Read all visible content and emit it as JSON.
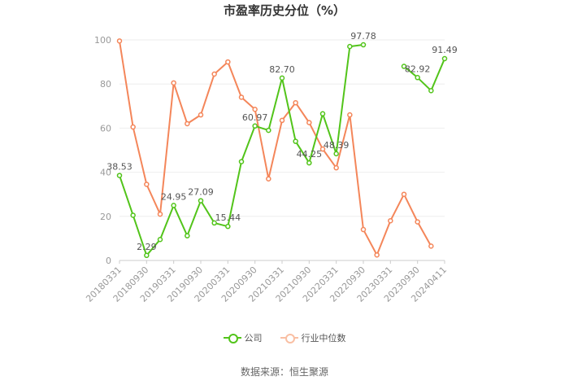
{
  "chart_data": {
    "type": "line",
    "title": "市盈率历史分位（%）",
    "ylim": [
      0,
      100
    ],
    "yticks": [
      0,
      20,
      40,
      60,
      80,
      100
    ],
    "grid": true,
    "legend_position": "bottom",
    "categories": [
      "20180331",
      "20180630",
      "20180930",
      "20181231",
      "20190331",
      "20190630",
      "20190930",
      "20191231",
      "20200331",
      "20200630",
      "20200930",
      "20201231",
      "20210331",
      "20210630",
      "20210930",
      "20211231",
      "20220331",
      "20220630",
      "20220930",
      "20221231",
      "20230331",
      "20230630",
      "20230930",
      "20231231",
      "20240411"
    ],
    "xtick_labels": [
      "20180331",
      "20180930",
      "20190331",
      "20190930",
      "20200331",
      "20200930",
      "20210331",
      "20210930",
      "20220331",
      "20220930",
      "20230331",
      "20230930",
      "20240411"
    ],
    "series": [
      {
        "name": "公司",
        "color": "#52c41a",
        "values": [
          38.53,
          20.5,
          2.29,
          9.5,
          24.95,
          11.2,
          27.09,
          17.0,
          15.44,
          44.8,
          60.97,
          59.0,
          82.7,
          54.0,
          44.25,
          66.5,
          48.39,
          97.0,
          97.78,
          null,
          null,
          88.0,
          82.92,
          77.0,
          91.49
        ],
        "labels": [
          {
            "index": 0,
            "text": "38.53"
          },
          {
            "index": 2,
            "text": "2.29"
          },
          {
            "index": 4,
            "text": "24.95"
          },
          {
            "index": 6,
            "text": "27.09"
          },
          {
            "index": 8,
            "text": "15.44"
          },
          {
            "index": 10,
            "text": "60.97"
          },
          {
            "index": 12,
            "text": "82.70"
          },
          {
            "index": 14,
            "text": "44.25"
          },
          {
            "index": 16,
            "text": "48.39"
          },
          {
            "index": 18,
            "text": "97.78"
          },
          {
            "index": 22,
            "text": "82.92"
          },
          {
            "index": 24,
            "text": "91.49"
          }
        ]
      },
      {
        "name": "行业中位数",
        "color": "#f4865a",
        "values": [
          99.5,
          60.5,
          34.5,
          21.0,
          80.5,
          62.0,
          66.0,
          84.5,
          90.0,
          74.0,
          68.5,
          37.0,
          63.5,
          71.5,
          62.5,
          50.5,
          42.0,
          66.0,
          14.0,
          2.5,
          18.0,
          30.0,
          17.5,
          6.5,
          null
        ]
      }
    ]
  },
  "legend": {
    "company": "公司",
    "industry": "行业中位数"
  },
  "source": "数据来源：恒生聚源"
}
